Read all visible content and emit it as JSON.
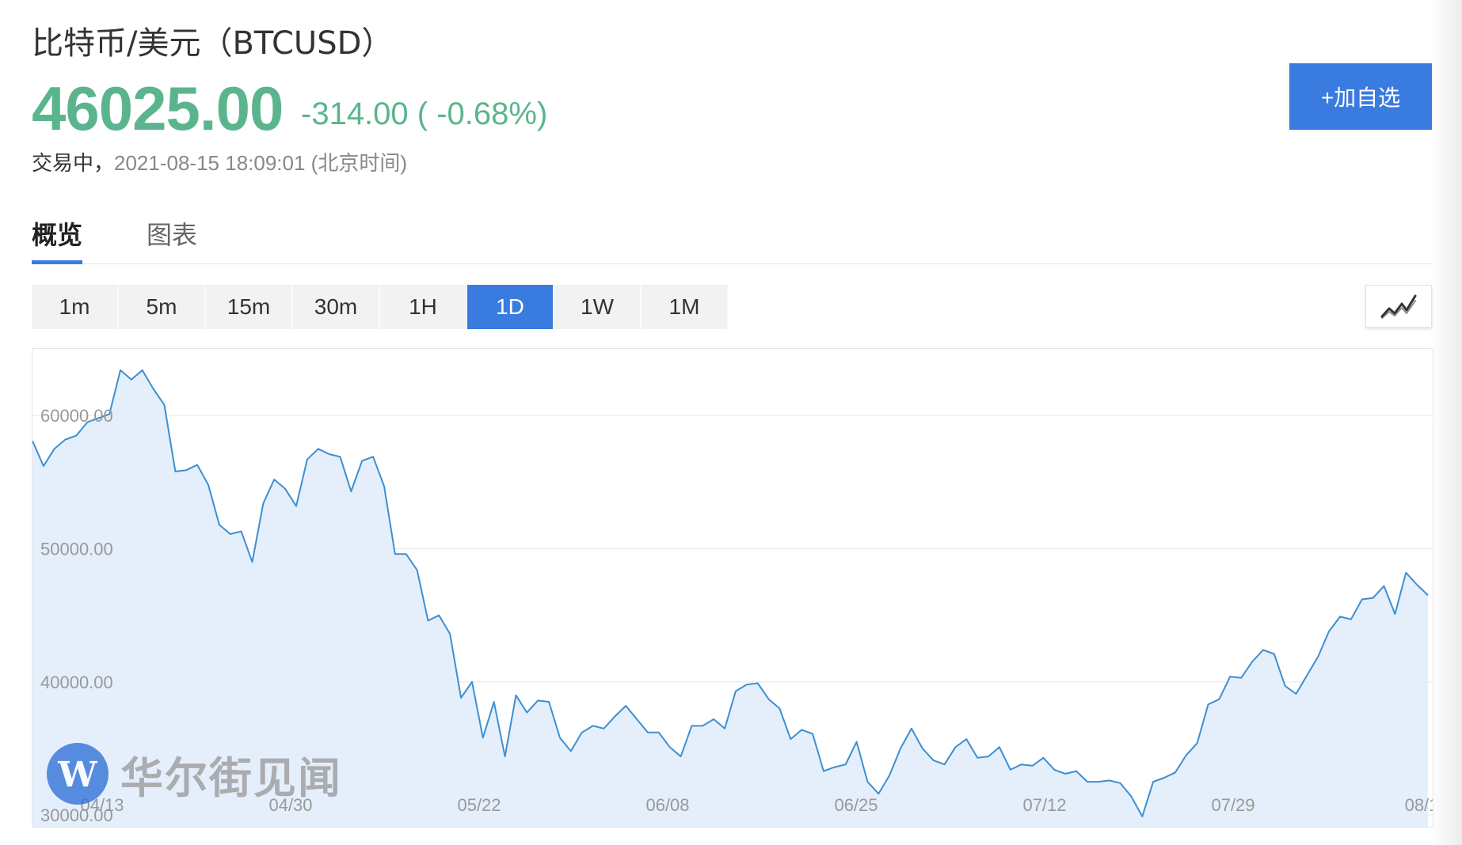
{
  "header": {
    "title": "比特币/美元（BTCUSD）",
    "price": "46025.00",
    "change": "-314.00 ( -0.68%)",
    "status": "交易中，",
    "timestamp": "2021-08-15 18:09:01 (北京时间)",
    "watch_button": "+加自选"
  },
  "tabs": [
    {
      "label": "概览",
      "active": true
    },
    {
      "label": "图表",
      "active": false
    }
  ],
  "periods": [
    {
      "label": "1m",
      "active": false
    },
    {
      "label": "5m",
      "active": false
    },
    {
      "label": "15m",
      "active": false
    },
    {
      "label": "30m",
      "active": false
    },
    {
      "label": "1H",
      "active": false
    },
    {
      "label": "1D",
      "active": true
    },
    {
      "label": "1W",
      "active": false
    },
    {
      "label": "1M",
      "active": false
    }
  ],
  "watermark": {
    "text": "华尔街见闻"
  },
  "colors": {
    "accent": "#3a7be0",
    "up_down": "#5bb58c",
    "line": "#3d8fd1",
    "area": "#e4effb"
  },
  "chart_data": {
    "type": "area",
    "x_tick_labels": [
      "04/13",
      "04/30",
      "05/22",
      "06/08",
      "06/25",
      "07/12",
      "07/29",
      "08/1"
    ],
    "y_tick_labels": [
      "30000.00",
      "40000.00",
      "50000.00",
      "60000.00"
    ],
    "ylim": [
      29000,
      65000
    ],
    "grid": true,
    "series": [
      {
        "values": [
          58100,
          56200,
          57500,
          58200,
          58500,
          59500,
          59800,
          60100,
          63400,
          62700,
          63400,
          62000,
          60800,
          55800,
          55900,
          56300,
          54800,
          51800,
          51100,
          51300,
          49000,
          53400,
          55200,
          54500,
          53200,
          56700,
          57500,
          57100,
          56900,
          54300,
          56600,
          56900,
          54700,
          49600,
          49600,
          48400,
          44600,
          45000,
          43600,
          38800,
          40000,
          35800,
          38500,
          34400,
          39000,
          37700,
          38600,
          38500,
          35800,
          34800,
          36200,
          36700,
          36500,
          37400,
          38200,
          37200,
          36200,
          36200,
          35100,
          34400,
          36700,
          36700,
          37200,
          36500,
          39300,
          39800,
          39900,
          38700,
          38000,
          35700,
          36400,
          36100,
          33300,
          33600,
          33800,
          35500,
          32500,
          31600,
          33000,
          35000,
          36500,
          35000,
          34100,
          33800,
          35100,
          35700,
          34300,
          34400,
          35100,
          33400,
          33800,
          33700,
          34300,
          33400,
          33100,
          33300,
          32500,
          32500,
          32600,
          32400,
          31400,
          29900,
          32500,
          32800,
          33200,
          34500,
          35400,
          38300,
          38700,
          40400,
          40300,
          41500,
          42400,
          42100,
          39700,
          39100,
          40500,
          41900,
          43800,
          44900,
          44700,
          46200,
          46300,
          47200,
          45100,
          48200,
          47300,
          46500
        ]
      }
    ]
  }
}
